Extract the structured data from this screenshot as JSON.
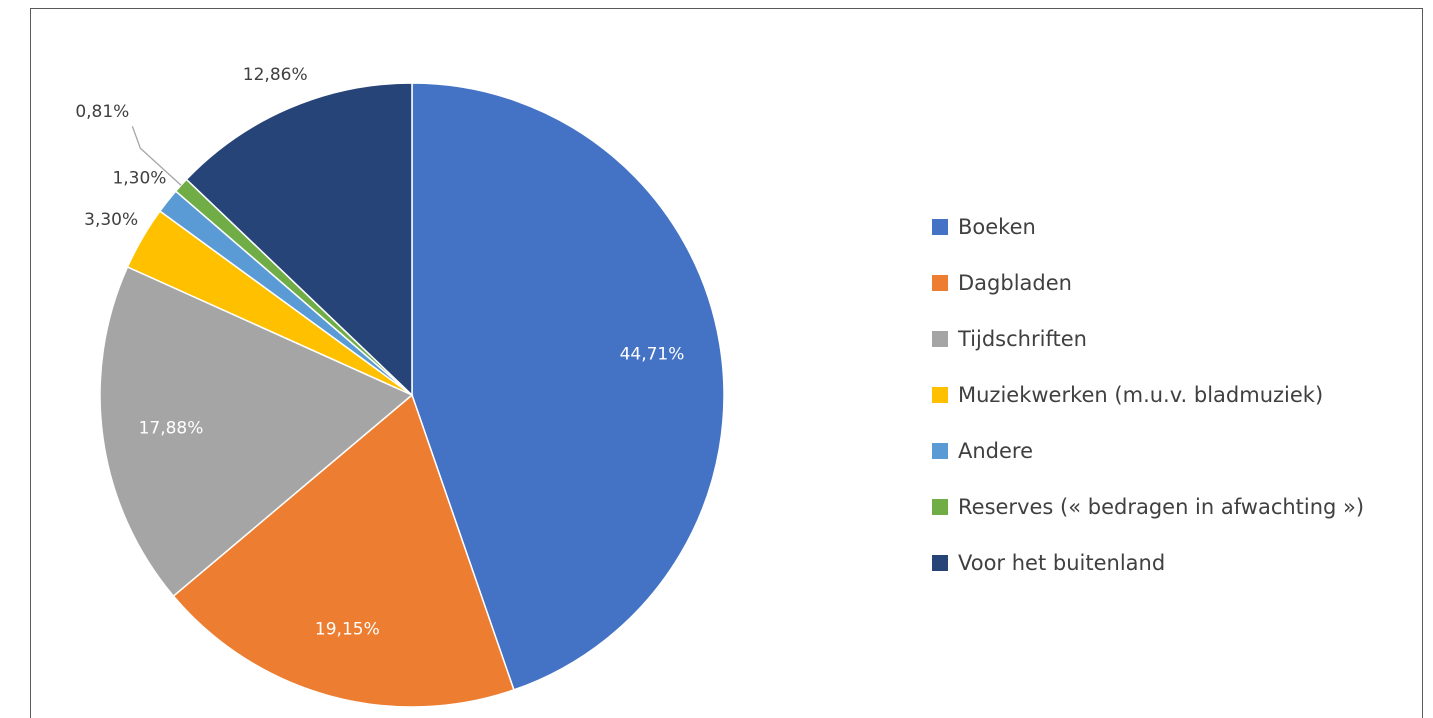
{
  "chart_data": {
    "type": "pie",
    "categories": [
      "Boeken",
      "Dagbladen",
      "Tijdschriften",
      "Muziekwerken (m.u.v. bladmuziek)",
      "Andere",
      "Reserves (« bedragen in afwachting »)",
      "Voor het buitenland"
    ],
    "values": [
      44.71,
      19.15,
      17.88,
      3.3,
      1.3,
      0.81,
      12.86
    ],
    "value_labels": [
      "44,71%",
      "19,15%",
      "17,88%",
      "3,30%",
      "1,30%",
      "0,81%",
      "12,86%"
    ],
    "colors": [
      "#4472c4",
      "#ed7d31",
      "#a5a5a5",
      "#ffc000",
      "#5b9bd5",
      "#70ad47",
      "#264478"
    ],
    "legend": "right"
  }
}
